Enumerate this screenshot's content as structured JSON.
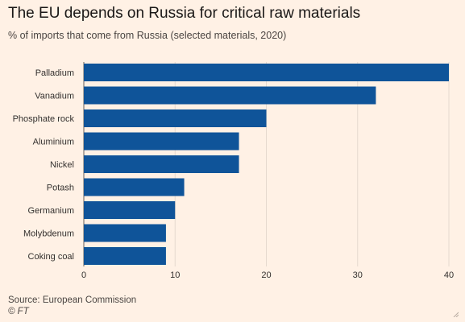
{
  "header": {
    "title": "The EU depends on Russia for critical raw materials",
    "subtitle": "% of imports that come from Russia (selected materials, 2020)"
  },
  "footer": {
    "source": "Source: European Commission",
    "credit": "© FT"
  },
  "colors": {
    "background": "#fff1e5",
    "bar": "#0f5499",
    "grid": "#e6d9ce",
    "axis": "#66605c"
  },
  "chart_data": {
    "type": "bar",
    "orientation": "horizontal",
    "categories": [
      "Palladium",
      "Vanadium",
      "Phosphate rock",
      "Aluminium",
      "Nickel",
      "Potash",
      "Germanium",
      "Molybdenum",
      "Coking coal"
    ],
    "values": [
      40,
      32,
      20,
      17,
      17,
      11,
      10,
      9,
      9
    ],
    "xlim": [
      0,
      40
    ],
    "xticks": [
      0,
      10,
      20,
      30,
      40
    ],
    "grid": true
  }
}
